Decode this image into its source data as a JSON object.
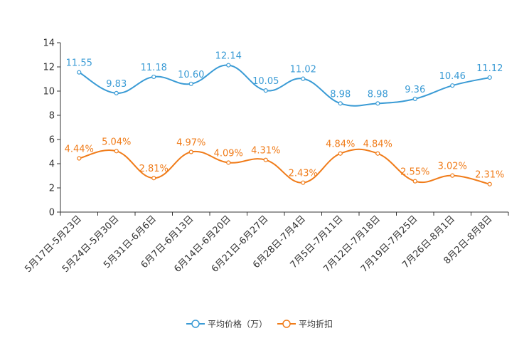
{
  "chart_data": {
    "type": "line",
    "title": "",
    "xlabel": "",
    "ylabel": "",
    "ylim": [
      0,
      14
    ],
    "yticks": [
      0,
      2,
      4,
      6,
      8,
      10,
      12,
      14
    ],
    "grid": false,
    "legend_position": "bottom-center",
    "categories": [
      "5月17日-5月23日",
      "5月24日-5月30日",
      "5月31日-6月6日",
      "6月7日-6月13日",
      "6月14日-6月20日",
      "6月21日-6月27日",
      "6月28日-7月4日",
      "7月5日-7月11日",
      "7月12日-7月18日",
      "7月19日-7月25日",
      "7月26日-8月1日",
      "8月2日-8月8日"
    ],
    "series": [
      {
        "name": "平均价格（万）",
        "color": "#3a9bd5",
        "values": [
          11.55,
          9.83,
          11.18,
          10.6,
          12.14,
          10.05,
          11.02,
          8.98,
          8.98,
          9.36,
          10.46,
          11.12
        ],
        "labels": [
          "11.55",
          "9.83",
          "11.18",
          "10.60",
          "12.14",
          "10.05",
          "11.02",
          "8.98",
          "8.98",
          "9.36",
          "10.46",
          "11.12"
        ]
      },
      {
        "name": "平均折扣",
        "color": "#f07c1a",
        "values": [
          4.44,
          5.04,
          2.81,
          4.97,
          4.09,
          4.31,
          2.43,
          4.84,
          4.84,
          2.55,
          3.02,
          2.31
        ],
        "labels": [
          "4.44%",
          "5.04%",
          "2.81%",
          "4.97%",
          "4.09%",
          "4.31%",
          "2.43%",
          "4.84%",
          "4.84%",
          "2.55%",
          "3.02%",
          "2.31%"
        ]
      }
    ]
  }
}
